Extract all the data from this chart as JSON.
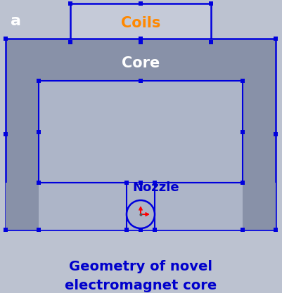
{
  "bg_color": "#bcc2d0",
  "core_color": "#8891a8",
  "inner_color": "#adb5c8",
  "coils_color": "#c5cad8",
  "nozzle_fill": "#8891a8",
  "blue": "#0000dd",
  "orange": "#ff8800",
  "blue_text": "#0000cc",
  "white": "#ffffff",
  "black": "#000000",
  "title": "Geometry of novel\nelectromagnet core",
  "label_a": "a",
  "label_coils": "Coils",
  "label_core": "Core",
  "label_nozzle": "Nozzle",
  "fig_w": 4.01,
  "fig_h": 4.17,
  "dpi": 100
}
